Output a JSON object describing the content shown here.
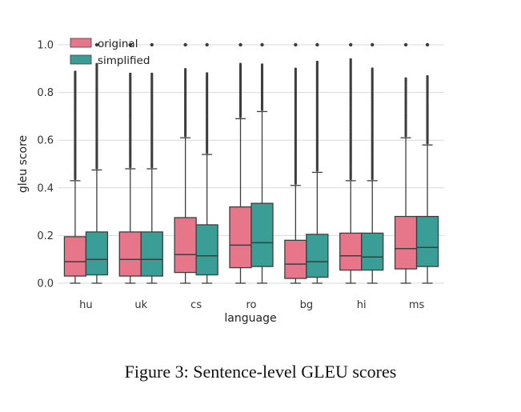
{
  "caption": "Figure 3: Sentence-level GLEU scores",
  "chart_data": {
    "type": "box",
    "xlabel": "language",
    "ylabel": "gleu score",
    "ylim": [
      0,
      1.0
    ],
    "yticks": [
      "0.0",
      "0.2",
      "0.4",
      "0.6",
      "0.8",
      "1.0"
    ],
    "categories": [
      "hu",
      "uk",
      "cs",
      "ro",
      "bg",
      "hi",
      "ms"
    ],
    "grid": true,
    "legend": "top-left",
    "series": [
      {
        "name": "original",
        "color": "#e8768a",
        "boxes": [
          {
            "min": 0.0,
            "q1": 0.03,
            "median": 0.09,
            "q3": 0.195,
            "whisker_high": 0.43,
            "outliers_from": 0.43,
            "outliers_to": 0.89,
            "max": 1.0
          },
          {
            "min": 0.0,
            "q1": 0.03,
            "median": 0.1,
            "q3": 0.215,
            "whisker_high": 0.48,
            "outliers_from": 0.48,
            "outliers_to": 0.88,
            "max": 1.0
          },
          {
            "min": 0.0,
            "q1": 0.045,
            "median": 0.12,
            "q3": 0.275,
            "whisker_high": 0.61,
            "outliers_from": 0.61,
            "outliers_to": 0.9,
            "max": 1.0
          },
          {
            "min": 0.0,
            "q1": 0.065,
            "median": 0.16,
            "q3": 0.32,
            "whisker_high": 0.69,
            "outliers_from": 0.69,
            "outliers_to": 0.92,
            "max": 1.0
          },
          {
            "min": 0.0,
            "q1": 0.02,
            "median": 0.08,
            "q3": 0.18,
            "whisker_high": 0.41,
            "outliers_from": 0.41,
            "outliers_to": 0.9,
            "max": 1.0
          },
          {
            "min": 0.0,
            "q1": 0.055,
            "median": 0.115,
            "q3": 0.21,
            "whisker_high": 0.43,
            "outliers_from": 0.43,
            "outliers_to": 0.94,
            "max": 1.0
          },
          {
            "min": 0.0,
            "q1": 0.06,
            "median": 0.145,
            "q3": 0.28,
            "whisker_high": 0.61,
            "outliers_from": 0.61,
            "outliers_to": 0.86,
            "max": 1.0
          }
        ]
      },
      {
        "name": "simplified",
        "color": "#3a9e97",
        "boxes": [
          {
            "min": 0.0,
            "q1": 0.035,
            "median": 0.1,
            "q3": 0.215,
            "whisker_high": 0.475,
            "outliers_from": 0.475,
            "outliers_to": 0.92,
            "max": 1.0
          },
          {
            "min": 0.0,
            "q1": 0.03,
            "median": 0.1,
            "q3": 0.215,
            "whisker_high": 0.48,
            "outliers_from": 0.48,
            "outliers_to": 0.88,
            "max": 1.0
          },
          {
            "min": 0.0,
            "q1": 0.035,
            "median": 0.115,
            "q3": 0.245,
            "whisker_high": 0.54,
            "outliers_from": 0.54,
            "outliers_to": 0.88,
            "max": 1.0
          },
          {
            "min": 0.0,
            "q1": 0.07,
            "median": 0.17,
            "q3": 0.335,
            "whisker_high": 0.72,
            "outliers_from": 0.72,
            "outliers_to": 0.92,
            "max": 1.0
          },
          {
            "min": 0.0,
            "q1": 0.025,
            "median": 0.09,
            "q3": 0.205,
            "whisker_high": 0.465,
            "outliers_from": 0.465,
            "outliers_to": 0.93,
            "max": 1.0
          },
          {
            "min": 0.0,
            "q1": 0.055,
            "median": 0.11,
            "q3": 0.21,
            "whisker_high": 0.43,
            "outliers_from": 0.43,
            "outliers_to": 0.9,
            "max": 1.0
          },
          {
            "min": 0.0,
            "q1": 0.07,
            "median": 0.15,
            "q3": 0.28,
            "whisker_high": 0.58,
            "outliers_from": 0.58,
            "outliers_to": 0.87,
            "max": 1.0
          }
        ]
      }
    ]
  }
}
